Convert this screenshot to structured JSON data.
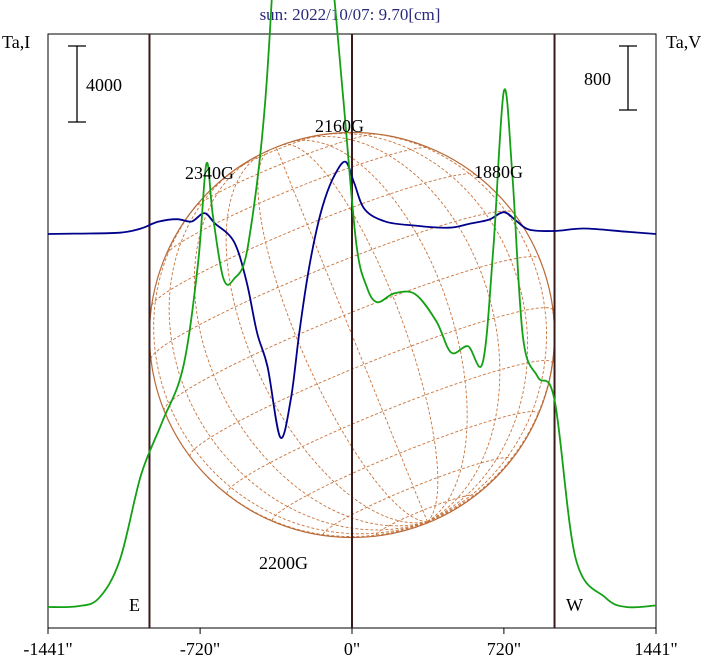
{
  "chart_data": {
    "type": "line",
    "title": "sun: 2022/10/07: 9.70[cm]",
    "ylabel_left": "Ta,I",
    "ylabel_right": "Ta,V",
    "x_ticks": [
      "-1441\"",
      "-720\"",
      "0\"",
      "720\"",
      "1441\""
    ],
    "x_tick_values": [
      -1441,
      -720,
      0,
      720,
      1441
    ],
    "xlim": [
      -1441,
      1441
    ],
    "limb_labels": {
      "east": "E",
      "west": "W"
    },
    "limb_positions": [
      -960,
      960
    ],
    "scale_bars": {
      "left": "4000",
      "right": "800"
    },
    "grid": false,
    "annotations": [
      {
        "text": "2340G",
        "x": -640
      },
      {
        "text": "2160G",
        "x": -30
      },
      {
        "text": "1880G",
        "x": 690
      },
      {
        "text": "2200G",
        "x": -270
      }
    ],
    "series": [
      {
        "color": "#00008b",
        "values": [
          [
            -1441,
            0
          ],
          [
            -1300,
            20
          ],
          [
            -1100,
            70
          ],
          [
            -1000,
            290
          ],
          [
            -920,
            640
          ],
          [
            -830,
            780
          ],
          [
            -760,
            660
          ],
          [
            -700,
            1100
          ],
          [
            -650,
            560
          ],
          [
            -560,
            -400
          ],
          [
            -500,
            -2500
          ],
          [
            -450,
            -5200
          ],
          [
            -400,
            -7000
          ],
          [
            -340,
            -10700
          ],
          [
            -290,
            -8700
          ],
          [
            -250,
            -5200
          ],
          [
            -210,
            -2200
          ],
          [
            -170,
            100
          ],
          [
            -130,
            1800
          ],
          [
            -80,
            3150
          ],
          [
            -30,
            3800
          ],
          [
            10,
            2700
          ],
          [
            60,
            1300
          ],
          [
            160,
            650
          ],
          [
            300,
            440
          ],
          [
            460,
            330
          ],
          [
            560,
            550
          ],
          [
            650,
            760
          ],
          [
            720,
            1150
          ],
          [
            780,
            680
          ],
          [
            840,
            230
          ],
          [
            960,
            160
          ],
          [
            1100,
            290
          ],
          [
            1300,
            120
          ],
          [
            1441,
            0
          ]
        ]
      },
      {
        "color": "#14a014",
        "values": [
          [
            -1441,
            0
          ],
          [
            -1300,
            10
          ],
          [
            -1200,
            110
          ],
          [
            -1100,
            590
          ],
          [
            -1000,
            1650
          ],
          [
            -900,
            2310
          ],
          [
            -800,
            3000
          ],
          [
            -730,
            4290
          ],
          [
            -690,
            5540
          ],
          [
            -660,
            4900
          ],
          [
            -610,
            4110
          ],
          [
            -560,
            4100
          ],
          [
            -490,
            4560
          ],
          [
            -400,
            6730
          ],
          [
            -330,
            10980
          ],
          [
            -290,
            17400
          ],
          [
            -260,
            20240
          ],
          [
            -230,
            15360
          ],
          [
            -190,
            10780
          ],
          [
            -150,
            9020
          ],
          [
            -100,
            8050
          ],
          [
            -40,
            6310
          ],
          [
            20,
            4550
          ],
          [
            70,
            4000
          ],
          [
            120,
            3810
          ],
          [
            200,
            3920
          ],
          [
            300,
            3910
          ],
          [
            400,
            3570
          ],
          [
            470,
            3180
          ],
          [
            550,
            3260
          ],
          [
            620,
            3060
          ],
          [
            670,
            4480
          ],
          [
            720,
            6450
          ],
          [
            760,
            5410
          ],
          [
            810,
            3380
          ],
          [
            880,
            2880
          ],
          [
            960,
            2590
          ],
          [
            1060,
            610
          ],
          [
            1200,
            120
          ],
          [
            1300,
            0
          ],
          [
            1441,
            20
          ]
        ]
      }
    ]
  }
}
